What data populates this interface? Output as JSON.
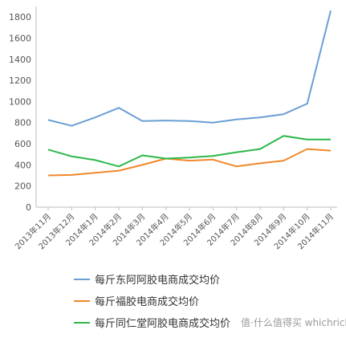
{
  "chart_data": {
    "type": "line",
    "categories": [
      "2013年11月",
      "2013年12月",
      "2014年1月",
      "2014年2月",
      "2014年3月",
      "2014年4月",
      "2014年5月",
      "2014年6月",
      "2014年7月",
      "2014年8月",
      "2014年9月",
      "2014年10月",
      "2014年11月"
    ],
    "ylim": [
      0,
      1900
    ],
    "yticks": [
      0,
      200,
      400,
      600,
      800,
      1000,
      1200,
      1400,
      1600,
      1800
    ],
    "grid": false,
    "legend_position": "bottom",
    "series": [
      {
        "name": "每斤东阿阿胶电商成交均价",
        "color": "#6a9fd4",
        "values": [
          825,
          770,
          850,
          940,
          815,
          820,
          815,
          800,
          830,
          850,
          880,
          980,
          1860
        ]
      },
      {
        "name": "每斤福胶电商成交均价",
        "color": "#f0882a",
        "values": [
          300,
          305,
          325,
          345,
          400,
          460,
          440,
          450,
          385,
          415,
          440,
          550,
          535
        ]
      },
      {
        "name": "每斤同仁堂阿胶电商成交均价",
        "color": "#2db84a",
        "values": [
          545,
          480,
          445,
          385,
          490,
          460,
          470,
          485,
          520,
          550,
          675,
          640,
          640
        ]
      }
    ]
  },
  "watermark": "值·什么值得买 whichrich"
}
